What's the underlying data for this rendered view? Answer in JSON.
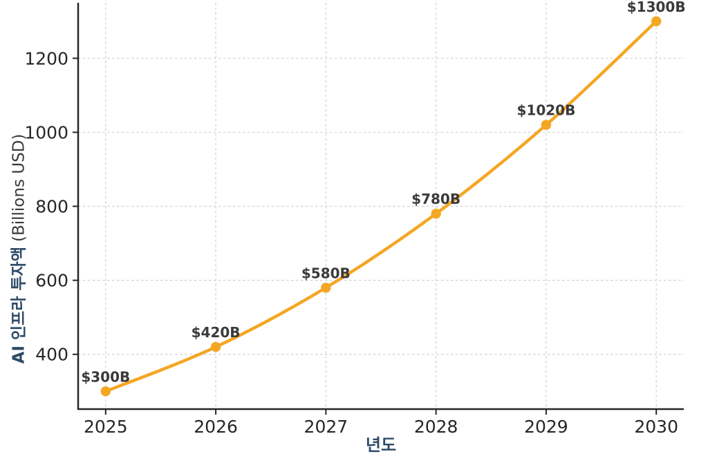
{
  "chart_data": {
    "type": "line",
    "x": [
      2025,
      2026,
      2027,
      2028,
      2029,
      2030
    ],
    "x_ticks": [
      "2025",
      "2026",
      "2027",
      "2028",
      "2029",
      "2030"
    ],
    "values": [
      300,
      420,
      580,
      780,
      1020,
      1300
    ],
    "point_labels": [
      "$300B",
      "$420B",
      "$580B",
      "$780B",
      "$1020B",
      "$1300B"
    ],
    "y_ticks": [
      400,
      600,
      800,
      1000,
      1200
    ],
    "xlabel": "년도",
    "ylabel_korean": "AI 인프라 투자액",
    "ylabel_unit": "(Billions USD)",
    "title": "",
    "xlim": [
      2024.75,
      2030.25
    ],
    "ylim": [
      252,
      1350
    ],
    "grid": true,
    "legend": false,
    "colors": {
      "line": "#F5A623",
      "marker": "#F5A623",
      "point_label": "#3a3a3a",
      "axis_label": "#2e4a66",
      "unit_label": "#3a3a3a",
      "tick_label": "#262626",
      "spine": "#262626",
      "grid": "#d0d0d0",
      "background": "#ffffff"
    }
  }
}
